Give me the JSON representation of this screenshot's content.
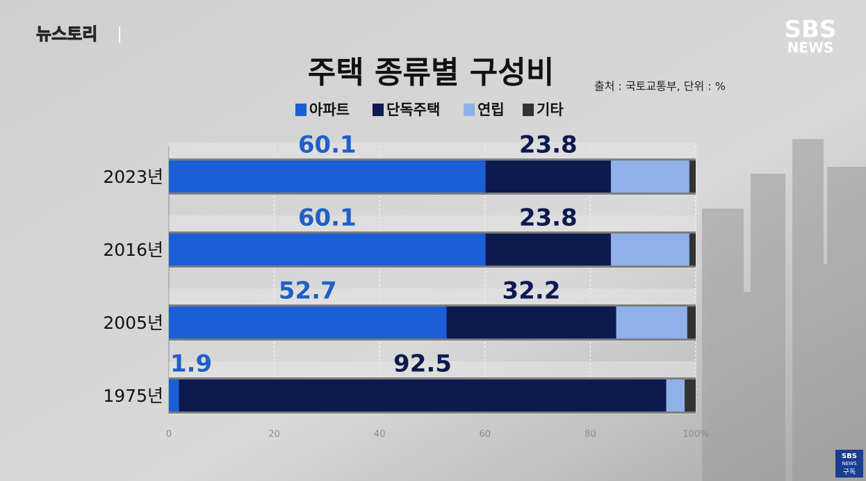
{
  "chart_data": {
    "type": "stacked-barh",
    "title": "주택 종류별 구성비",
    "subtitle": "출처 : 국토교통부, 단위 : %",
    "categories": [
      "2023년",
      "2016년",
      "2005년",
      "1975년"
    ],
    "series": [
      {
        "name": "아파트",
        "color": "#1a5fd6",
        "labels": true,
        "values": [
          60.1,
          60.1,
          52.7,
          1.9
        ]
      },
      {
        "name": "단독주택",
        "color": "#0d1a4f",
        "labels": true,
        "values": [
          23.8,
          23.8,
          32.2,
          92.5
        ]
      },
      {
        "name": "연립",
        "color": "#8fb0e8",
        "labels": false,
        "values": [
          14.9,
          14.9,
          13.5,
          3.5
        ]
      },
      {
        "name": "기타",
        "color": "#333333",
        "labels": false,
        "values": [
          1.2,
          1.2,
          1.6,
          2.1
        ]
      }
    ],
    "xlim": [
      0,
      100
    ],
    "xticks": [
      0,
      20,
      40,
      60,
      80,
      {
        "value": 100,
        "label": "100%"
      }
    ],
    "grid": true
  },
  "branding": {
    "program": "뉴스토리",
    "logo": "SBS",
    "logo_sub": "NEWS",
    "subscribe_logo": "SBS",
    "subscribe_sub": "NEWS",
    "subscribe": "구독"
  }
}
